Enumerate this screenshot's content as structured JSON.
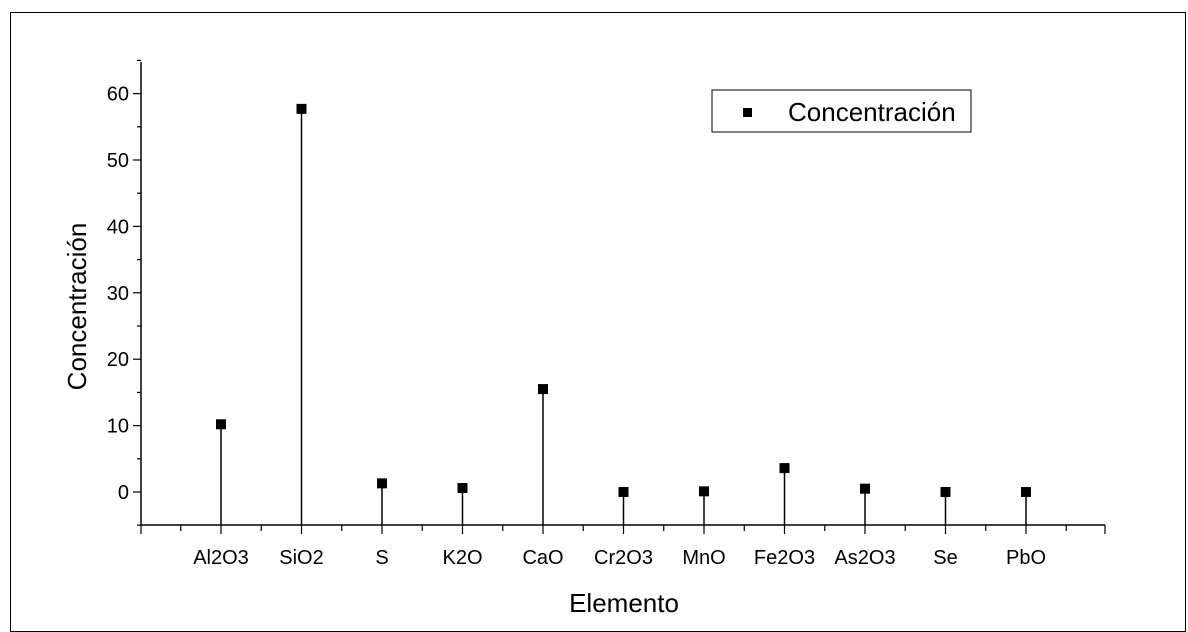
{
  "chart_data": {
    "type": "scatter",
    "style": "drop-lines",
    "xlabel": "Elemento",
    "ylabel": "Concentración",
    "categories": [
      "Al2O3",
      "SiO2",
      "S",
      "K2O",
      "CaO",
      "Cr2O3",
      "MnO",
      "Fe2O3",
      "As2O3",
      "Se",
      "PbO"
    ],
    "series": [
      {
        "name": "Concentración",
        "values": [
          10.2,
          57.7,
          1.3,
          0.6,
          15.5,
          0.0,
          0.1,
          3.6,
          0.5,
          0.0,
          0.0
        ],
        "color": "#000000",
        "marker": "square"
      }
    ],
    "ylim": [
      -5,
      65
    ],
    "yticks": [
      0,
      10,
      20,
      30,
      40,
      50,
      60
    ],
    "grid": false,
    "legend_position": "top-right"
  }
}
